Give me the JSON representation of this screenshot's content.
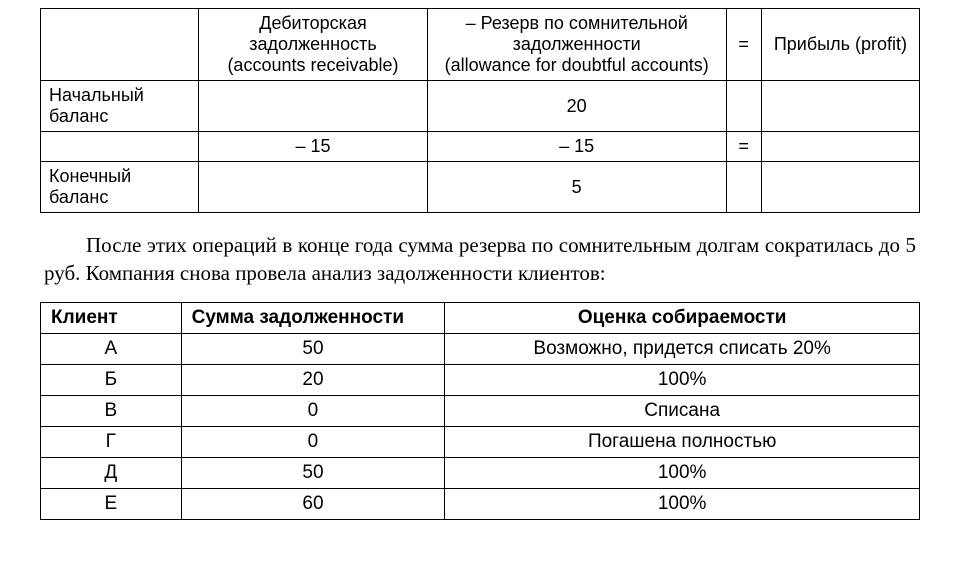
{
  "table1": {
    "headers": {
      "col1": "Дебиторская задолженность\n(accounts receivable)",
      "col2": "– Резерв по сомнительной задолженности\n(allowance for doubtful accounts)",
      "eq": "=",
      "col4": "Прибыль (profit)"
    },
    "rows": [
      {
        "label": "Начальный баланс",
        "col1": "",
        "col2": "20",
        "eq": "",
        "col4": ""
      },
      {
        "label": "",
        "col1": "– 15",
        "col2": "– 15",
        "eq": "=",
        "col4": ""
      },
      {
        "label": "Конечный баланс",
        "col1": "",
        "col2": "5",
        "eq": "",
        "col4": ""
      }
    ]
  },
  "paragraph": "После этих операций в конце года сумма резерва по сомнительным долгам сократилась до 5 руб. Компания снова провела анализ задолженности клиентов:",
  "table2": {
    "headers": {
      "client": "Клиент",
      "sum": "Сумма задолженности",
      "assess": "Оценка собираемости"
    },
    "rows": [
      {
        "client": "А",
        "sum": "50",
        "assess": "Возможно, придется списать 20%"
      },
      {
        "client": "Б",
        "sum": "20",
        "assess": "100%"
      },
      {
        "client": "В",
        "sum": "0",
        "assess": "Списана"
      },
      {
        "client": "Г",
        "sum": "0",
        "assess": "Погашена полностью"
      },
      {
        "client": "Д",
        "sum": "50",
        "assess": "100%"
      },
      {
        "client": "Е",
        "sum": "60",
        "assess": "100%"
      }
    ]
  }
}
